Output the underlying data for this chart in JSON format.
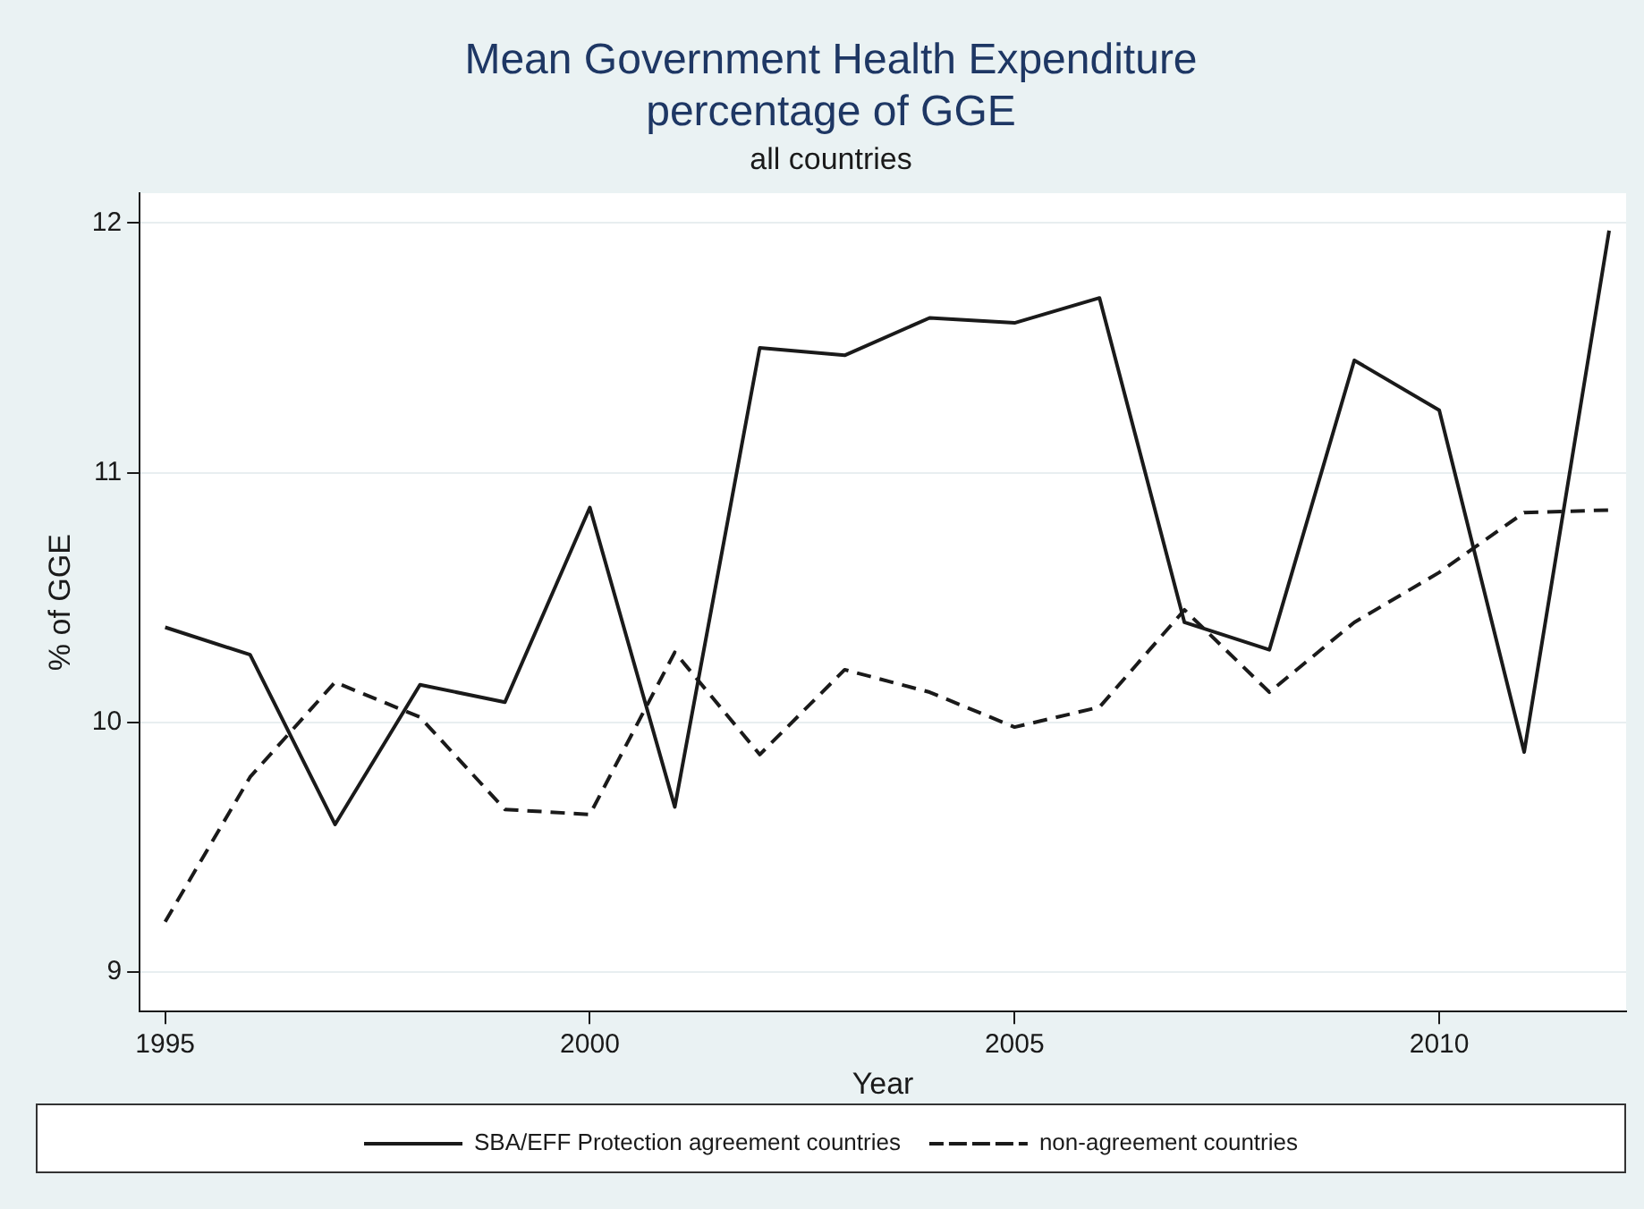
{
  "chart_data": {
    "type": "line",
    "title": "Mean Government Health Expenditure\npercentage of GGE",
    "subtitle": "all countries",
    "xlabel": "Year",
    "ylabel": "% of GGE",
    "x": [
      1995,
      1996,
      1997,
      1998,
      1999,
      2000,
      2001,
      2002,
      2003,
      2004,
      2005,
      2006,
      2007,
      2008,
      2009,
      2010,
      2011,
      2012
    ],
    "series": [
      {
        "name": "SBA/EFF Protection agreement countries",
        "color": "#1a1a1a",
        "line_style": "solid",
        "values": [
          10.38,
          10.27,
          9.59,
          10.15,
          10.08,
          10.86,
          9.66,
          11.5,
          11.47,
          11.62,
          11.6,
          11.7,
          10.4,
          10.29,
          11.45,
          11.25,
          9.88,
          11.97
        ]
      },
      {
        "name": "non-agreement countries",
        "color": "#1a1a1a",
        "line_style": "dashed",
        "values": [
          9.2,
          9.78,
          10.16,
          10.02,
          9.65,
          9.63,
          10.28,
          9.87,
          10.21,
          10.12,
          9.98,
          10.06,
          10.45,
          10.12,
          10.4,
          10.6,
          10.84,
          10.85
        ]
      }
    ],
    "xlim": [
      1994.7,
      2012.2
    ],
    "xticks": [
      1995,
      2000,
      2005,
      2010
    ],
    "ylim": [
      8.84,
      12.12
    ],
    "yticks": [
      9,
      10,
      11,
      12
    ],
    "grid": "y",
    "legend": "bottom",
    "marker": "none"
  }
}
